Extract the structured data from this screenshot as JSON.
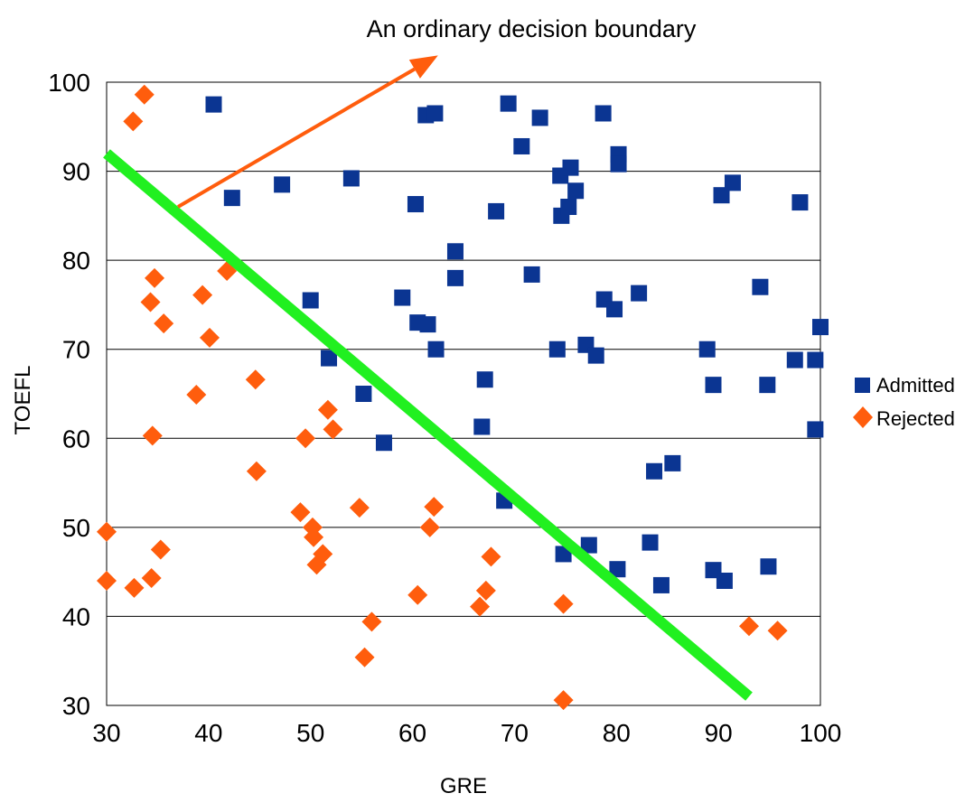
{
  "chart_data": {
    "type": "scatter",
    "title": "",
    "annotation": "An ordinary decision boundary",
    "xlabel": "GRE",
    "ylabel": "TOEFL",
    "xlim": [
      30,
      100
    ],
    "ylim": [
      30,
      100
    ],
    "xticks": [
      "30",
      "40",
      "50",
      "60",
      "70",
      "80",
      "90",
      "100"
    ],
    "yticks": [
      "30",
      "40",
      "50",
      "60",
      "70",
      "80",
      "90",
      "100"
    ],
    "grid": "horizontal",
    "legend_position": "right",
    "series": [
      {
        "name": "Admitted",
        "marker": "square",
        "color": "#0b3592",
        "points": [
          [
            40.5,
            97.5
          ],
          [
            42.3,
            87
          ],
          [
            47.2,
            88.5
          ],
          [
            50,
            75.5
          ],
          [
            51.8,
            69
          ],
          [
            54,
            89.2
          ],
          [
            55.2,
            65
          ],
          [
            57.2,
            59.5
          ],
          [
            59,
            75.8
          ],
          [
            60.3,
            86.3
          ],
          [
            60.5,
            73
          ],
          [
            61.3,
            96.3
          ],
          [
            61.5,
            72.8
          ],
          [
            62.2,
            96.5
          ],
          [
            62.3,
            70
          ],
          [
            64.2,
            78
          ],
          [
            64.2,
            81
          ],
          [
            66.8,
            61.3
          ],
          [
            67.1,
            66.6
          ],
          [
            68.2,
            85.5
          ],
          [
            69,
            53
          ],
          [
            69.4,
            97.6
          ],
          [
            70.7,
            92.8
          ],
          [
            71.7,
            78.4
          ],
          [
            72.5,
            96
          ],
          [
            74.2,
            70
          ],
          [
            74.5,
            89.5
          ],
          [
            74.6,
            85
          ],
          [
            74.8,
            47
          ],
          [
            75.3,
            86
          ],
          [
            75.5,
            90.4
          ],
          [
            76,
            87.8
          ],
          [
            77,
            70.5
          ],
          [
            77.3,
            48
          ],
          [
            78,
            69.3
          ],
          [
            78.7,
            96.5
          ],
          [
            78.8,
            75.6
          ],
          [
            79.8,
            74.5
          ],
          [
            80.2,
            91.9
          ],
          [
            80.2,
            90.8
          ],
          [
            80.1,
            45.3
          ],
          [
            82.2,
            76.3
          ],
          [
            83.3,
            48.3
          ],
          [
            83.7,
            56.3
          ],
          [
            84.4,
            43.5
          ],
          [
            85.5,
            57.2
          ],
          [
            88.9,
            70
          ],
          [
            89.5,
            66
          ],
          [
            89.5,
            45.2
          ],
          [
            90.3,
            87.3
          ],
          [
            90.6,
            44
          ],
          [
            91.4,
            88.7
          ],
          [
            94.1,
            77
          ],
          [
            94.8,
            66
          ],
          [
            94.9,
            45.6
          ],
          [
            97.5,
            68.8
          ],
          [
            98,
            86.5
          ],
          [
            99.5,
            68.8
          ],
          [
            99.5,
            61
          ],
          [
            100,
            72.5
          ]
        ]
      },
      {
        "name": "Rejected",
        "marker": "diamond",
        "color": "#ff5d0d",
        "points": [
          [
            30,
            49.5
          ],
          [
            30,
            44
          ],
          [
            32.7,
            43.2
          ],
          [
            32.6,
            95.6
          ],
          [
            33.7,
            98.6
          ],
          [
            34.3,
            75.3
          ],
          [
            34.4,
            44.3
          ],
          [
            34.5,
            60.3
          ],
          [
            34.7,
            78
          ],
          [
            35.3,
            47.5
          ],
          [
            35.6,
            72.9
          ],
          [
            38.8,
            64.9
          ],
          [
            39.4,
            76.1
          ],
          [
            40.1,
            71.3
          ],
          [
            41.8,
            78.8
          ],
          [
            44.6,
            66.6
          ],
          [
            44.7,
            56.3
          ],
          [
            49,
            51.7
          ],
          [
            49.5,
            60
          ],
          [
            50.2,
            50
          ],
          [
            50.3,
            48.9
          ],
          [
            50.6,
            45.8
          ],
          [
            51.2,
            47
          ],
          [
            51.7,
            63.2
          ],
          [
            52.2,
            61
          ],
          [
            54.8,
            52.2
          ],
          [
            55.3,
            35.4
          ],
          [
            56,
            39.4
          ],
          [
            60.5,
            42.4
          ],
          [
            61.7,
            50
          ],
          [
            62.1,
            52.3
          ],
          [
            66.6,
            41.1
          ],
          [
            67.2,
            42.9
          ],
          [
            67.7,
            46.7
          ],
          [
            74.8,
            41.4
          ],
          [
            74.8,
            30.6
          ],
          [
            93,
            38.9
          ],
          [
            95.8,
            38.4
          ]
        ]
      }
    ],
    "decision_boundary": {
      "from": [
        30,
        92
      ],
      "to": [
        93,
        31
      ],
      "color": "#21f020"
    },
    "annotation_arrow": {
      "from": [
        37,
        86
      ],
      "to": [
        62.5,
        103
      ],
      "color": "#ff5d0d"
    }
  }
}
